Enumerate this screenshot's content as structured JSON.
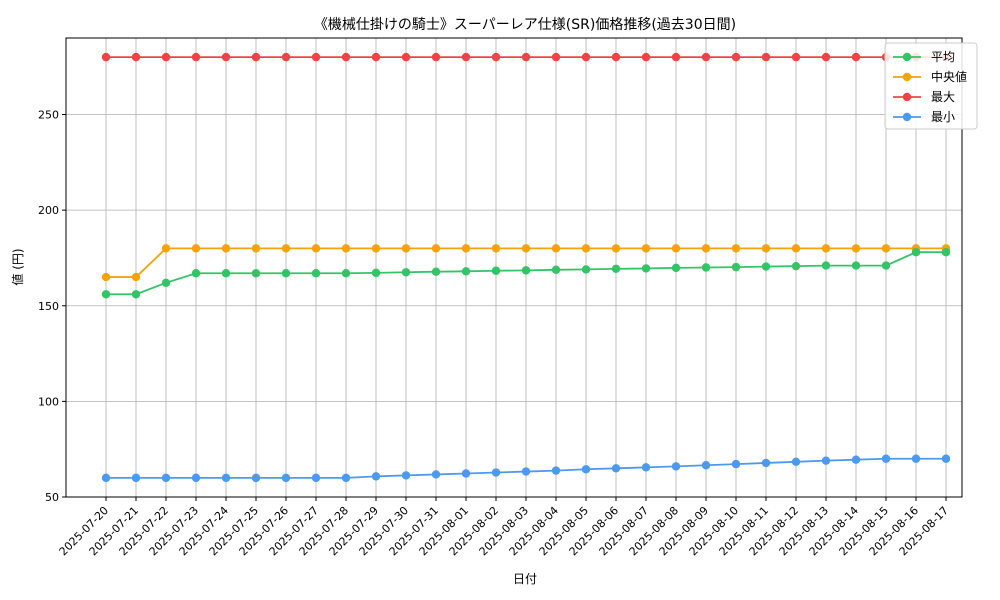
{
  "chart_data": {
    "type": "line",
    "title": "《機械仕掛けの騎士》スーパーレア仕様(SR)価格推移(過去30日間)",
    "xlabel": "日付",
    "ylabel": "値 (円)",
    "ylim": [
      50,
      290
    ],
    "yticks": [
      50,
      100,
      150,
      200,
      250
    ],
    "grid": true,
    "legend_position": "top-right",
    "categories": [
      "2025-07-20",
      "2025-07-21",
      "2025-07-22",
      "2025-07-23",
      "2025-07-24",
      "2025-07-25",
      "2025-07-26",
      "2025-07-27",
      "2025-07-28",
      "2025-07-29",
      "2025-07-30",
      "2025-07-31",
      "2025-08-01",
      "2025-08-02",
      "2025-08-03",
      "2025-08-04",
      "2025-08-05",
      "2025-08-06",
      "2025-08-07",
      "2025-08-08",
      "2025-08-09",
      "2025-08-10",
      "2025-08-11",
      "2025-08-12",
      "2025-08-13",
      "2025-08-14",
      "2025-08-15",
      "2025-08-16",
      "2025-08-17"
    ],
    "series": [
      {
        "name": "平均",
        "color": "#33c466",
        "values": [
          156,
          156,
          162,
          167,
          167,
          167,
          167,
          167,
          167,
          167.2,
          167.5,
          167.8,
          168,
          168.3,
          168.5,
          168.8,
          169,
          169.3,
          169.5,
          169.8,
          170,
          170.2,
          170.5,
          170.7,
          171,
          171,
          171,
          178,
          178
        ]
      },
      {
        "name": "中央値",
        "color": "#f5a30a",
        "values": [
          165,
          165,
          180,
          180,
          180,
          180,
          180,
          180,
          180,
          180,
          180,
          180,
          180,
          180,
          180,
          180,
          180,
          180,
          180,
          180,
          180,
          180,
          180,
          180,
          180,
          180,
          180,
          180,
          180
        ]
      },
      {
        "name": "最大",
        "color": "#ef4444",
        "values": [
          280,
          280,
          280,
          280,
          280,
          280,
          280,
          280,
          280,
          280,
          280,
          280,
          280,
          280,
          280,
          280,
          280,
          280,
          280,
          280,
          280,
          280,
          280,
          280,
          280,
          280,
          280,
          280,
          280
        ]
      },
      {
        "name": "最小",
        "color": "#4b9af0",
        "values": [
          60,
          60,
          60,
          60,
          60,
          60,
          60,
          60,
          60,
          60.8,
          61.3,
          61.8,
          62.3,
          62.8,
          63.3,
          63.8,
          64.5,
          65,
          65.5,
          66,
          66.6,
          67.2,
          67.8,
          68.4,
          69,
          69.5,
          70,
          70,
          70
        ]
      }
    ]
  }
}
